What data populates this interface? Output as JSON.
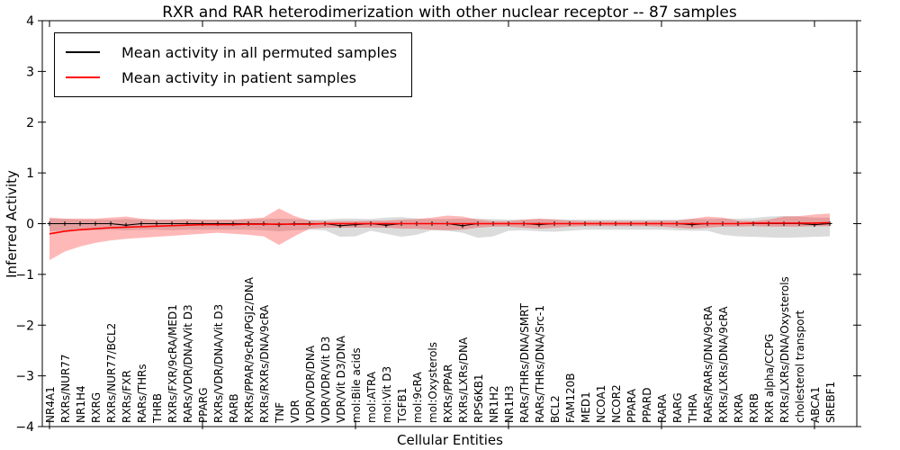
{
  "title": "RXR and RAR heterodimerization with other nuclear receptor -- 87 samples",
  "axes": {
    "ylabel": "Inferred Activity",
    "xlabel": "Cellular Entities",
    "yticks": [
      4,
      3,
      2,
      1,
      0,
      -1,
      -2,
      -3,
      -4
    ],
    "xtick_category_positions": [
      0,
      10,
      20,
      30,
      40,
      50
    ]
  },
  "legend": {
    "items": [
      {
        "label": "Mean activity in all permuted samples",
        "color": "#000000"
      },
      {
        "label": "Mean activity in patient samples",
        "color": "#ff0000"
      }
    ]
  },
  "chart_data": {
    "type": "line",
    "title": "RXR and RAR heterodimerization with other nuclear receptor -- 87 samples",
    "xlabel": "Cellular Entities",
    "ylabel": "Inferred Activity",
    "ylim": [
      -4,
      4
    ],
    "grid": false,
    "legend_position": "upper left",
    "categories": [
      "NR4A1",
      "RXRs/NUR77",
      "NR1H4",
      "RXRG",
      "RXRs/NUR77/BCL2",
      "RXRs/FXR",
      "RARs/THRs",
      "THRB",
      "RXRs/FXR/9cRA/MED1",
      "RARs/VDR/DNA/Vit D3",
      "PPARG",
      "RXRs/VDR/DNA/Vit D3",
      "RARB",
      "RXRs/PPAR/9cRA/PGJ2/DNA",
      "RXRs/RXRs/DNA/9cRA",
      "TNF",
      "VDR",
      "VDR/VDR/DNA",
      "VDR/VDR/Vit D3",
      "VDR/Vit D3/DNA",
      "mol:Bile acids",
      "mol:ATRA",
      "mol:Vit D3",
      "TGFB1",
      "mol:9cRA",
      "mol:Oxysterols",
      "RXRs/PPAR",
      "RXRs/LXRs/DNA",
      "RPS6KB1",
      "NR1H2",
      "NR1H3",
      "RARs/THRs/DNA/SMRT",
      "RARs/THRs/DNA/Src-1",
      "BCL2",
      "FAM120B",
      "MED1",
      "NCOA1",
      "NCOR2",
      "PPARA",
      "PPARD",
      "RARA",
      "RARG",
      "THRA",
      "RARs/RARs/DNA/9cRA",
      "RXRs/LXRs/DNA/9cRA",
      "RXRA",
      "RXRB",
      "RXR alpha/CCPG",
      "RXRs/LXRs/DNA/Oxysterols",
      "cholesterol transport",
      "ABCA1",
      "SREBF1"
    ],
    "series": [
      {
        "name": "Mean activity in all permuted samples",
        "color": "#000000",
        "marker": "plus",
        "values": [
          0,
          0,
          0,
          0,
          0,
          -0.03,
          0,
          0,
          0,
          0,
          0,
          0,
          0,
          0,
          0,
          -0.02,
          0,
          0,
          0,
          -0.04,
          -0.02,
          0,
          -0.03,
          0,
          0,
          0,
          0,
          -0.04,
          0,
          0,
          0,
          0,
          -0.02,
          0,
          0,
          0,
          0,
          0,
          0,
          0,
          0,
          0,
          -0.02,
          0,
          0,
          0,
          0,
          0,
          0,
          0,
          -0.02,
          0
        ]
      },
      {
        "name": "Mean activity in patient samples",
        "color": "#ff0000",
        "marker": "none",
        "values": [
          -0.2,
          -0.15,
          -0.12,
          -0.1,
          -0.08,
          -0.07,
          -0.06,
          -0.05,
          -0.04,
          -0.03,
          -0.02,
          -0.02,
          -0.02,
          -0.01,
          -0.01,
          -0.01,
          -0.01,
          -0.01,
          0,
          0,
          0,
          0,
          0,
          0,
          0,
          0,
          0,
          0,
          0,
          0,
          0,
          0,
          0,
          0,
          0,
          0,
          0,
          0,
          0,
          0,
          0,
          0,
          0,
          0,
          0,
          0,
          0.01,
          0.01,
          0.01,
          0.01,
          0.01,
          0.02
        ]
      }
    ],
    "bands": [
      {
        "name": "permuted samples spread",
        "color": "rgba(0,0,0,0.14)",
        "upper": [
          0.1,
          0.09,
          0.08,
          0.08,
          0.08,
          0.09,
          0.08,
          0.08,
          0.08,
          0.08,
          0.08,
          0.08,
          0.08,
          0.08,
          0.09,
          0.1,
          0.09,
          0.08,
          0.08,
          0.1,
          0.1,
          0.09,
          0.12,
          0.13,
          0.1,
          0.09,
          0.09,
          0.1,
          0.1,
          0.09,
          0.08,
          0.08,
          0.09,
          0.09,
          0.08,
          0.08,
          0.08,
          0.08,
          0.08,
          0.08,
          0.08,
          0.08,
          0.09,
          0.09,
          0.1,
          0.1,
          0.11,
          0.14,
          0.15,
          0.14,
          0.12,
          0.12
        ],
        "lower": [
          -0.15,
          -0.14,
          -0.13,
          -0.13,
          -0.12,
          -0.13,
          -0.12,
          -0.12,
          -0.13,
          -0.12,
          -0.12,
          -0.12,
          -0.12,
          -0.12,
          -0.13,
          -0.15,
          -0.13,
          -0.12,
          -0.13,
          -0.26,
          -0.25,
          -0.14,
          -0.2,
          -0.26,
          -0.22,
          -0.13,
          -0.14,
          -0.18,
          -0.28,
          -0.25,
          -0.14,
          -0.13,
          -0.15,
          -0.16,
          -0.14,
          -0.12,
          -0.12,
          -0.12,
          -0.12,
          -0.12,
          -0.12,
          -0.13,
          -0.14,
          -0.14,
          -0.22,
          -0.25,
          -0.26,
          -0.27,
          -0.28,
          -0.27,
          -0.26,
          -0.25
        ]
      },
      {
        "name": "patient samples spread",
        "color": "rgba(255,0,0,0.28)",
        "upper": [
          0.12,
          0.1,
          0.1,
          0.1,
          0.12,
          0.14,
          0.1,
          0.08,
          0.08,
          0.09,
          0.08,
          0.08,
          0.08,
          0.1,
          0.12,
          0.3,
          0.15,
          0.06,
          0.05,
          0.05,
          0.05,
          0.06,
          0.06,
          0.08,
          0.09,
          0.12,
          0.16,
          0.14,
          0.08,
          0.05,
          0.05,
          0.08,
          0.1,
          0.08,
          0.06,
          0.05,
          0.05,
          0.05,
          0.05,
          0.05,
          0.06,
          0.06,
          0.1,
          0.14,
          0.12,
          0.06,
          0.05,
          0.08,
          0.14,
          0.15,
          0.18,
          0.2
        ],
        "lower": [
          -0.72,
          -0.55,
          -0.45,
          -0.38,
          -0.33,
          -0.3,
          -0.28,
          -0.26,
          -0.24,
          -0.22,
          -0.2,
          -0.18,
          -0.2,
          -0.22,
          -0.25,
          -0.42,
          -0.25,
          -0.1,
          -0.08,
          -0.08,
          -0.08,
          -0.08,
          -0.08,
          -0.1,
          -0.1,
          -0.12,
          -0.13,
          -0.12,
          -0.08,
          -0.06,
          -0.06,
          -0.08,
          -0.1,
          -0.08,
          -0.06,
          -0.05,
          -0.05,
          -0.05,
          -0.05,
          -0.05,
          -0.06,
          -0.08,
          -0.1,
          -0.08,
          -0.06,
          -0.06,
          -0.05,
          -0.06,
          -0.06,
          -0.06,
          -0.05,
          -0.05
        ]
      }
    ]
  }
}
